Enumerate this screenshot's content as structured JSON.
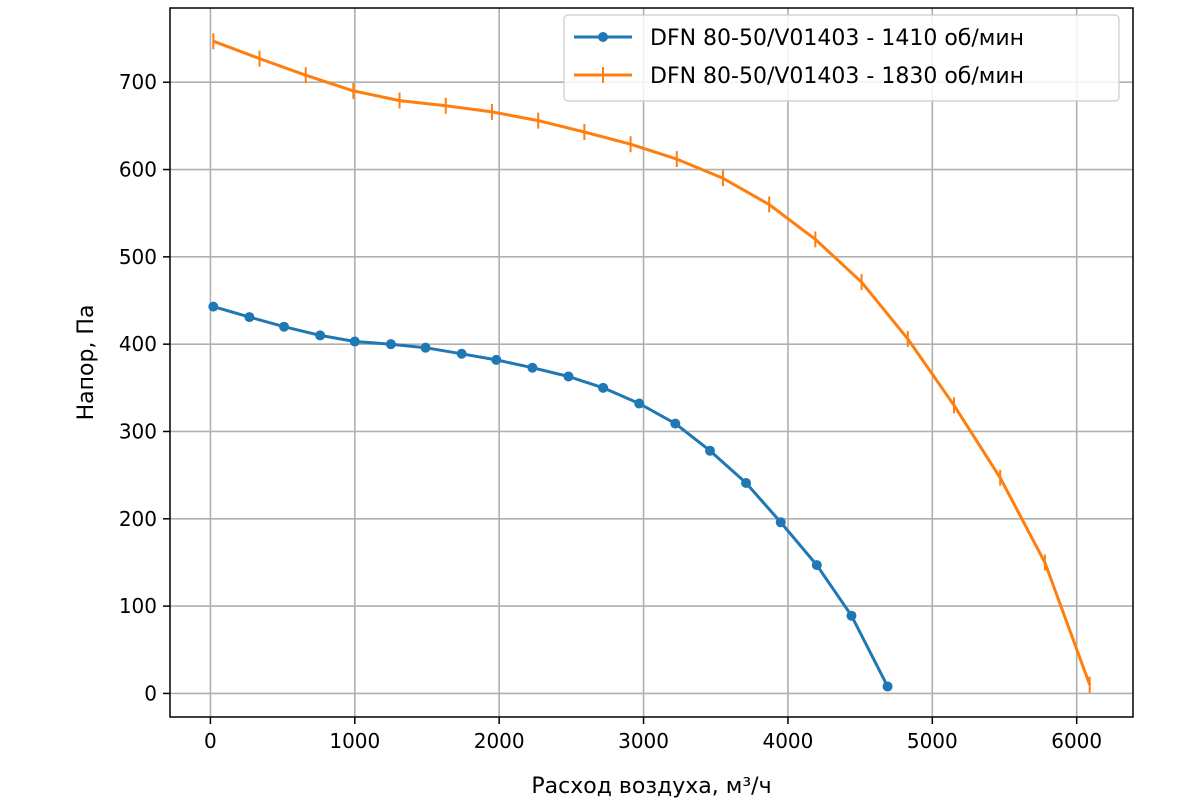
{
  "chart_data": {
    "type": "line",
    "xlabel": "Расход воздуха, м³/ч",
    "ylabel": "Напор, Па",
    "xlim": [
      -280,
      6390
    ],
    "ylim": [
      -27,
      785
    ],
    "xticks": [
      0,
      1000,
      2000,
      3000,
      4000,
      5000,
      6000
    ],
    "xtick_labels": [
      "0",
      "1000",
      "2000",
      "3000",
      "4000",
      "5000",
      "6000"
    ],
    "yticks": [
      0,
      100,
      200,
      300,
      400,
      500,
      600,
      700
    ],
    "ytick_labels": [
      "0",
      "100",
      "200",
      "300",
      "400",
      "500",
      "600",
      "700"
    ],
    "grid": true,
    "legend_position": "top-right",
    "series": [
      {
        "name": "DFN 80-50/V01403 - 1410 об/мин",
        "color": "#1f77b4",
        "marker": "circle",
        "x": [
          20,
          270,
          510,
          760,
          1000,
          1250,
          1490,
          1740,
          1980,
          2230,
          2480,
          2720,
          2970,
          3220,
          3460,
          3710,
          3950,
          4200,
          4440,
          4690
        ],
        "y": [
          443,
          431,
          420,
          410,
          403,
          400,
          396,
          389,
          382,
          373,
          363,
          350,
          332,
          309,
          278,
          241,
          196,
          147,
          89,
          8
        ]
      },
      {
        "name": "DFN 80-50/V01403 - 1830 об/мин",
        "color": "#ff7f0e",
        "marker": "vline",
        "x": [
          20,
          340,
          660,
          990,
          1310,
          1630,
          1950,
          2270,
          2590,
          2910,
          3230,
          3550,
          3870,
          4190,
          4510,
          4830,
          5150,
          5470,
          5780,
          6090
        ],
        "y": [
          747,
          727,
          708,
          690,
          679,
          673,
          666,
          656,
          643,
          629,
          612,
          590,
          560,
          520,
          471,
          406,
          330,
          247,
          150,
          10
        ]
      }
    ]
  }
}
